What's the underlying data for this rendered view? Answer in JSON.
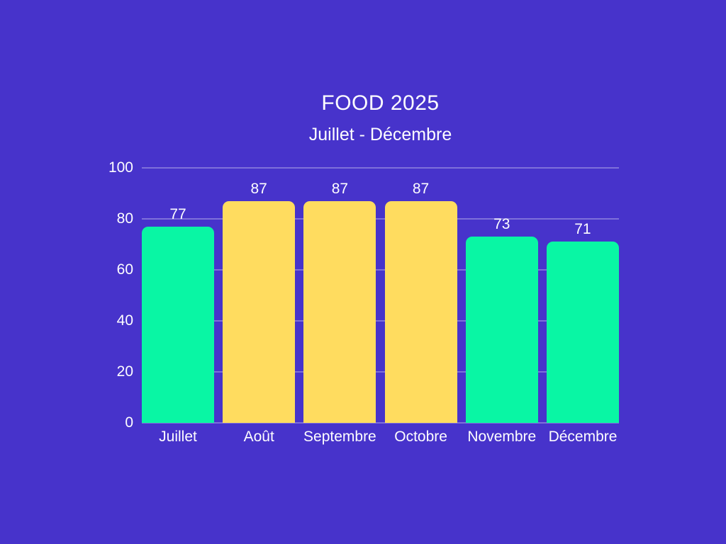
{
  "title": "FOOD 2025",
  "subtitle": "Juillet - Décembre",
  "colors": {
    "background": "#4733CB",
    "text": "#FDFDFF",
    "gridline": "rgba(255,255,255,0.30)",
    "bar_green": "#09F6A4",
    "bar_yellow": "#FFDC5F"
  },
  "chart_data": {
    "type": "bar",
    "title": "FOOD 2025",
    "subtitle": "Juillet - Décembre",
    "categories": [
      "Juillet",
      "Août",
      "Septembre",
      "Octobre",
      "Novembre",
      "Décembre"
    ],
    "values": [
      77,
      87,
      87,
      87,
      73,
      71
    ],
    "bar_colors": [
      "#09F6A4",
      "#FFDC5F",
      "#FFDC5F",
      "#FFDC5F",
      "#09F6A4",
      "#09F6A4"
    ],
    "xlabel": "",
    "ylabel": "",
    "ylim": [
      0,
      100
    ],
    "yticks": [
      0,
      20,
      40,
      60,
      80,
      100
    ],
    "grid": true,
    "legend": false,
    "value_labels": true
  }
}
